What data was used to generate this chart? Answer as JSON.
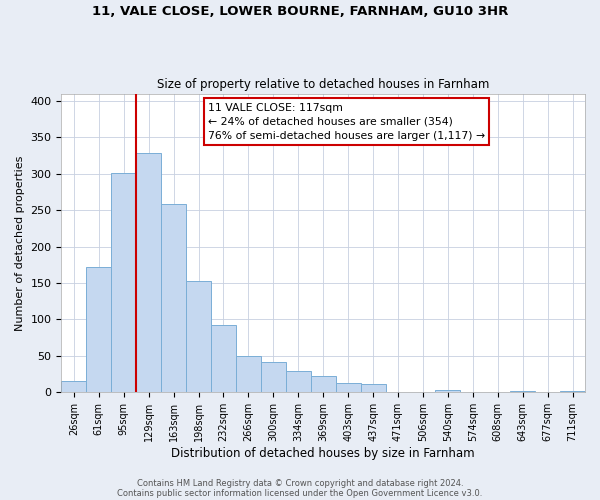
{
  "title1": "11, VALE CLOSE, LOWER BOURNE, FARNHAM, GU10 3HR",
  "title2": "Size of property relative to detached houses in Farnham",
  "xlabel": "Distribution of detached houses by size in Farnham",
  "ylabel": "Number of detached properties",
  "bar_labels": [
    "26sqm",
    "61sqm",
    "95sqm",
    "129sqm",
    "163sqm",
    "198sqm",
    "232sqm",
    "266sqm",
    "300sqm",
    "334sqm",
    "369sqm",
    "403sqm",
    "437sqm",
    "471sqm",
    "506sqm",
    "540sqm",
    "574sqm",
    "608sqm",
    "643sqm",
    "677sqm",
    "711sqm"
  ],
  "bar_values": [
    15,
    172,
    301,
    329,
    259,
    153,
    92,
    50,
    42,
    29,
    23,
    13,
    11,
    0,
    0,
    3,
    0,
    0,
    2,
    0,
    2
  ],
  "bar_color": "#c5d8f0",
  "bar_edge_color": "#7aaed6",
  "property_line_color": "#cc0000",
  "annotation_title": "11 VALE CLOSE: 117sqm",
  "annotation_line1": "← 24% of detached houses are smaller (354)",
  "annotation_line2": "76% of semi-detached houses are larger (1,117) →",
  "annotation_box_color": "#cc0000",
  "ylim": [
    0,
    410
  ],
  "yticks": [
    0,
    50,
    100,
    150,
    200,
    250,
    300,
    350,
    400
  ],
  "footnote1": "Contains HM Land Registry data © Crown copyright and database right 2024.",
  "footnote2": "Contains public sector information licensed under the Open Government Licence v3.0.",
  "bg_color": "#e8edf5",
  "plot_bg_color": "#ffffff",
  "grid_color": "#c8d0e0"
}
